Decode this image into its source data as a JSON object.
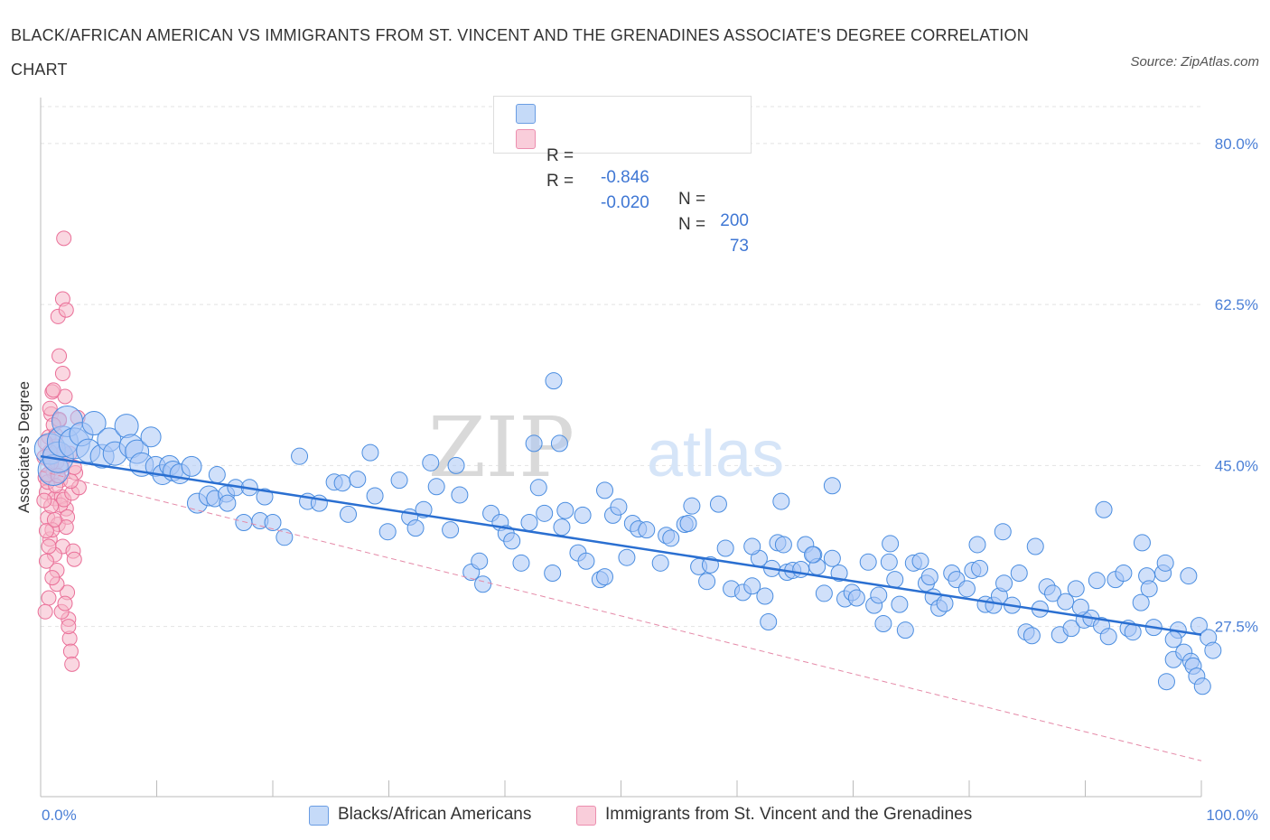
{
  "header": {
    "title": "BLACK/AFRICAN AMERICAN VS IMMIGRANTS FROM ST. VINCENT AND THE GRENADINES ASSOCIATE'S DEGREE CORRELATION CHART",
    "source": "Source: ZipAtlas.com"
  },
  "legend_top": {
    "rows": [
      {
        "r_label": "R =",
        "r_value": "-0.846",
        "n_label": "N =",
        "n_value": "200",
        "color": "#a9c7f5"
      },
      {
        "r_label": "R =",
        "r_value": "-0.020",
        "n_label": "N =",
        "n_value": "73",
        "color": "#f6b6c9"
      }
    ]
  },
  "legend_bottom": {
    "items": [
      {
        "label": "Blacks/African Americans",
        "color": "#a9c7f5"
      },
      {
        "label": "Immigrants from St. Vincent and the Grenadines",
        "color": "#f6b6c9"
      }
    ]
  },
  "watermark": {
    "zip": "ZIP",
    "atlas": "atlas"
  },
  "chart_data": {
    "type": "scatter",
    "title": "BLACK/AFRICAN AMERICAN VS IMMIGRANTS FROM ST. VINCENT AND THE GRENADINES ASSOCIATE'S DEGREE CORRELATION CHART",
    "ylabel": "Associate's Degree",
    "xlabel": "",
    "xlim": [
      0,
      100
    ],
    "ylim": [
      9.0,
      85.0
    ],
    "x_tick_labels": [
      "0.0%",
      "100.0%"
    ],
    "y_ticks": [
      27.5,
      45.0,
      62.5,
      80.0
    ],
    "y_tick_labels": [
      "27.5%",
      "45.0%",
      "62.5%",
      "80.0%"
    ],
    "grid": true,
    "legend_placement": "top-center",
    "colors": {
      "blue": "#4a8de0",
      "blue_fill": "#a9c7f5",
      "pink": "#ea6f98",
      "pink_fill": "#f6b6c9",
      "blue_line": "#2a6fd1",
      "pink_line": "#e58aa8"
    },
    "series": [
      {
        "name": "Blacks/African Americans",
        "color": "#4a8de0",
        "trend": {
          "x": [
            0,
            100
          ],
          "y": [
            46.0,
            26.6
          ]
        },
        "points": [
          [
            0.8,
            46.8
          ],
          [
            1.1,
            44.5
          ],
          [
            1.5,
            45.9
          ],
          [
            1.9,
            47.6
          ],
          [
            2.3,
            49.8
          ],
          [
            2.9,
            47.4
          ],
          [
            3.5,
            48.4
          ],
          [
            4.1,
            46.6
          ],
          [
            4.6,
            49.6
          ],
          [
            5.3,
            46.0
          ],
          [
            5.9,
            47.8
          ],
          [
            6.4,
            46.3
          ],
          [
            7.4,
            49.3
          ],
          [
            7.8,
            47.1
          ],
          [
            8.3,
            46.5
          ],
          [
            8.7,
            45.1
          ],
          [
            9.5,
            48.1
          ],
          [
            9.9,
            44.9
          ],
          [
            10.5,
            44.0
          ],
          [
            11.1,
            45.0
          ],
          [
            11.4,
            44.4
          ],
          [
            12.0,
            44.1
          ],
          [
            13.0,
            44.9
          ],
          [
            13.5,
            40.9
          ],
          [
            14.5,
            41.7
          ],
          [
            15.0,
            41.4
          ],
          [
            15.2,
            44.0
          ],
          [
            16.0,
            41.9
          ],
          [
            16.1,
            40.9
          ],
          [
            16.8,
            42.6
          ],
          [
            17.5,
            38.8
          ],
          [
            18.0,
            42.6
          ],
          [
            18.9,
            39.0
          ],
          [
            19.3,
            41.6
          ],
          [
            20.0,
            38.8
          ],
          [
            21.0,
            37.2
          ],
          [
            22.3,
            46.0
          ],
          [
            23.0,
            41.1
          ],
          [
            24.0,
            40.9
          ],
          [
            25.3,
            43.2
          ],
          [
            26.0,
            43.1
          ],
          [
            26.5,
            39.7
          ],
          [
            27.3,
            43.5
          ],
          [
            28.4,
            46.4
          ],
          [
            28.8,
            41.7
          ],
          [
            29.9,
            37.8
          ],
          [
            30.9,
            43.4
          ],
          [
            31.8,
            39.4
          ],
          [
            32.3,
            38.2
          ],
          [
            33.0,
            40.2
          ],
          [
            33.6,
            45.3
          ],
          [
            34.1,
            42.7
          ],
          [
            35.3,
            38.0
          ],
          [
            35.8,
            45.0
          ],
          [
            36.1,
            41.8
          ],
          [
            37.1,
            33.4
          ],
          [
            37.8,
            34.6
          ],
          [
            38.1,
            32.1
          ],
          [
            38.8,
            39.8
          ],
          [
            39.6,
            38.8
          ],
          [
            40.1,
            37.6
          ],
          [
            40.6,
            36.8
          ],
          [
            41.4,
            34.4
          ],
          [
            42.1,
            38.8
          ],
          [
            42.5,
            47.4
          ],
          [
            42.9,
            42.6
          ],
          [
            43.4,
            39.8
          ],
          [
            44.1,
            33.3
          ],
          [
            44.9,
            38.3
          ],
          [
            45.2,
            40.1
          ],
          [
            46.3,
            35.5
          ],
          [
            46.7,
            39.6
          ],
          [
            47.0,
            34.6
          ],
          [
            48.2,
            32.6
          ],
          [
            48.6,
            32.9
          ],
          [
            49.3,
            39.6
          ],
          [
            49.8,
            40.5
          ],
          [
            50.5,
            35.0
          ],
          [
            51.0,
            38.7
          ],
          [
            51.5,
            38.1
          ],
          [
            52.2,
            38.0
          ],
          [
            53.4,
            34.4
          ],
          [
            53.9,
            37.4
          ],
          [
            54.3,
            37.1
          ],
          [
            55.5,
            38.6
          ],
          [
            56.1,
            40.6
          ],
          [
            56.7,
            34.0
          ],
          [
            57.4,
            32.4
          ],
          [
            57.7,
            34.2
          ],
          [
            58.4,
            40.8
          ],
          [
            59.0,
            36.0
          ],
          [
            59.5,
            31.6
          ],
          [
            60.5,
            31.2
          ],
          [
            61.3,
            31.9
          ],
          [
            61.9,
            34.9
          ],
          [
            62.4,
            30.8
          ],
          [
            62.7,
            28.0
          ],
          [
            63.0,
            33.8
          ],
          [
            63.5,
            36.6
          ],
          [
            64.0,
            36.4
          ],
          [
            64.3,
            33.4
          ],
          [
            64.8,
            33.6
          ],
          [
            65.5,
            33.7
          ],
          [
            65.9,
            36.4
          ],
          [
            66.6,
            35.3
          ],
          [
            66.9,
            34.0
          ],
          [
            67.5,
            31.1
          ],
          [
            68.2,
            34.9
          ],
          [
            68.8,
            33.3
          ],
          [
            69.3,
            30.5
          ],
          [
            69.9,
            31.2
          ],
          [
            70.3,
            30.6
          ],
          [
            71.3,
            34.5
          ],
          [
            71.8,
            29.8
          ],
          [
            72.2,
            30.9
          ],
          [
            72.6,
            27.8
          ],
          [
            73.1,
            34.5
          ],
          [
            73.6,
            32.6
          ],
          [
            74.0,
            29.9
          ],
          [
            74.5,
            27.1
          ],
          [
            75.2,
            34.4
          ],
          [
            75.8,
            34.6
          ],
          [
            76.3,
            32.2
          ],
          [
            76.9,
            30.7
          ],
          [
            77.4,
            29.5
          ],
          [
            77.9,
            30.0
          ],
          [
            78.5,
            33.3
          ],
          [
            78.9,
            32.6
          ],
          [
            79.8,
            31.6
          ],
          [
            80.3,
            33.6
          ],
          [
            80.9,
            33.8
          ],
          [
            81.4,
            29.9
          ],
          [
            82.1,
            29.8
          ],
          [
            82.6,
            30.8
          ],
          [
            83.0,
            32.2
          ],
          [
            83.7,
            29.8
          ],
          [
            84.3,
            33.3
          ],
          [
            84.9,
            26.9
          ],
          [
            85.4,
            26.5
          ],
          [
            86.1,
            29.4
          ],
          [
            86.7,
            31.8
          ],
          [
            87.2,
            31.1
          ],
          [
            87.8,
            26.6
          ],
          [
            88.3,
            30.2
          ],
          [
            88.8,
            27.3
          ],
          [
            89.2,
            31.6
          ],
          [
            89.9,
            28.2
          ],
          [
            90.5,
            28.4
          ],
          [
            91.0,
            32.5
          ],
          [
            91.4,
            27.6
          ],
          [
            92.0,
            26.4
          ],
          [
            92.6,
            32.6
          ],
          [
            93.3,
            33.3
          ],
          [
            93.7,
            27.3
          ],
          [
            94.1,
            26.9
          ],
          [
            94.8,
            30.1
          ],
          [
            95.3,
            33.0
          ],
          [
            95.9,
            27.4
          ],
          [
            96.7,
            33.3
          ],
          [
            97.0,
            21.5
          ],
          [
            97.6,
            23.9
          ],
          [
            98.0,
            27.1
          ],
          [
            98.5,
            24.7
          ],
          [
            99.1,
            23.7
          ],
          [
            99.8,
            27.6
          ],
          [
            99.3,
            23.2
          ],
          [
            99.6,
            22.1
          ],
          [
            100.1,
            21.0
          ],
          [
            100.6,
            26.3
          ],
          [
            101.0,
            24.9
          ],
          [
            44.2,
            54.2
          ],
          [
            44.7,
            47.4
          ],
          [
            48.6,
            42.3
          ],
          [
            55.8,
            38.7
          ],
          [
            61.3,
            36.2
          ],
          [
            63.8,
            41.1
          ],
          [
            66.5,
            35.3
          ],
          [
            68.2,
            42.8
          ],
          [
            73.2,
            36.5
          ],
          [
            76.6,
            32.9
          ],
          [
            80.7,
            36.4
          ],
          [
            82.9,
            37.8
          ],
          [
            85.7,
            36.2
          ],
          [
            89.6,
            29.6
          ],
          [
            91.6,
            40.2
          ],
          [
            94.9,
            36.6
          ],
          [
            96.9,
            34.4
          ],
          [
            98.9,
            33.0
          ],
          [
            95.5,
            31.6
          ],
          [
            97.6,
            26.1
          ]
        ]
      },
      {
        "name": "Immigrants from St. Vincent and the Grenadines",
        "color": "#ea6f98",
        "trend": {
          "x": [
            0,
            100
          ],
          "y": [
            44.4,
            12.9
          ]
        },
        "points": [
          [
            0.3,
            45.9
          ],
          [
            0.4,
            43.7
          ],
          [
            0.5,
            42.1
          ],
          [
            0.6,
            39.3
          ],
          [
            0.7,
            48.1
          ],
          [
            0.8,
            37.0
          ],
          [
            0.9,
            50.6
          ],
          [
            1.0,
            53.0
          ],
          [
            1.1,
            44.3
          ],
          [
            1.2,
            41.4
          ],
          [
            1.3,
            47.1
          ],
          [
            1.4,
            45.4
          ],
          [
            1.5,
            38.6
          ],
          [
            1.6,
            49.9
          ],
          [
            1.7,
            43.4
          ],
          [
            1.8,
            41.6
          ],
          [
            1.9,
            36.2
          ],
          [
            2.0,
            46.5
          ],
          [
            2.1,
            52.5
          ],
          [
            2.2,
            40.3
          ],
          [
            2.3,
            31.2
          ],
          [
            2.4,
            28.3
          ],
          [
            2.5,
            26.2
          ],
          [
            2.6,
            24.8
          ],
          [
            2.7,
            23.4
          ],
          [
            2.8,
            35.7
          ],
          [
            2.9,
            34.8
          ],
          [
            1.6,
            56.9
          ],
          [
            1.9,
            63.1
          ],
          [
            1.5,
            61.2
          ],
          [
            2.2,
            61.9
          ],
          [
            1.1,
            53.2
          ],
          [
            1.3,
            48.3
          ],
          [
            1.7,
            40.7
          ],
          [
            0.8,
            46.5
          ],
          [
            0.6,
            43.2
          ],
          [
            0.9,
            40.6
          ],
          [
            1.0,
            38.0
          ],
          [
            1.2,
            35.3
          ],
          [
            1.4,
            33.6
          ],
          [
            0.7,
            30.6
          ],
          [
            0.4,
            29.1
          ],
          [
            0.5,
            34.6
          ],
          [
            1.8,
            44.9
          ],
          [
            2.0,
            41.3
          ],
          [
            2.3,
            39.4
          ],
          [
            2.7,
            42.0
          ],
          [
            3.0,
            44.2
          ],
          [
            3.3,
            42.6
          ],
          [
            2.5,
            46.3
          ],
          [
            1.6,
            50.0
          ],
          [
            1.1,
            49.4
          ],
          [
            0.9,
            45.3
          ],
          [
            0.3,
            41.2
          ],
          [
            0.5,
            37.9
          ],
          [
            0.7,
            36.2
          ],
          [
            1.4,
            32.1
          ],
          [
            1.8,
            29.1
          ],
          [
            2.1,
            30.0
          ],
          [
            2.4,
            27.5
          ],
          [
            1.9,
            55.0
          ],
          [
            2.6,
            43.3
          ],
          [
            2.9,
            44.8
          ],
          [
            3.2,
            50.2
          ],
          [
            1.3,
            42.8
          ],
          [
            0.6,
            44.0
          ],
          [
            1.5,
            43.9
          ],
          [
            2.2,
            38.3
          ],
          [
            1.0,
            32.8
          ],
          [
            2.0,
            69.7
          ],
          [
            0.8,
            51.2
          ],
          [
            1.2,
            39.1
          ],
          [
            0.4,
            47.5
          ]
        ]
      }
    ]
  }
}
